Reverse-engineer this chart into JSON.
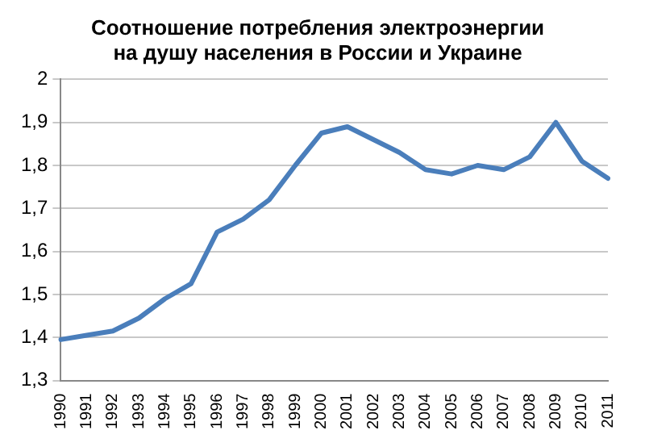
{
  "chart_data": {
    "type": "line",
    "title": [
      "Соотношение потребления электроэнергии",
      "на душу населения в России и Украине"
    ],
    "categories": [
      "1990",
      "1991",
      "1992",
      "1993",
      "1994",
      "1995",
      "1996",
      "1997",
      "1998",
      "1999",
      "2000",
      "2001",
      "2002",
      "2003",
      "2004",
      "2005",
      "2006",
      "2007",
      "2008",
      "2009",
      "2010",
      "2011"
    ],
    "series": [
      {
        "color": "#4a7ebb",
        "values": [
          1.395,
          1.405,
          1.415,
          1.445,
          1.49,
          1.525,
          1.645,
          1.675,
          1.72,
          1.8,
          1.875,
          1.89,
          1.86,
          1.83,
          1.79,
          1.78,
          1.8,
          1.79,
          1.82,
          1.9,
          1.81,
          1.77
        ]
      }
    ],
    "ylim": [
      1.3,
      2
    ],
    "yticks": [
      {
        "value": 1.3,
        "label": "1,3"
      },
      {
        "value": 1.4,
        "label": "1,4"
      },
      {
        "value": 1.5,
        "label": "1,5"
      },
      {
        "value": 1.6,
        "label": "1,6"
      },
      {
        "value": 1.7,
        "label": "1,7"
      },
      {
        "value": 1.8,
        "label": "1,8"
      },
      {
        "value": 1.9,
        "label": "1,9"
      },
      2
    ],
    "grid": "y",
    "legend": false,
    "marker": "none",
    "line_style": "solid"
  }
}
